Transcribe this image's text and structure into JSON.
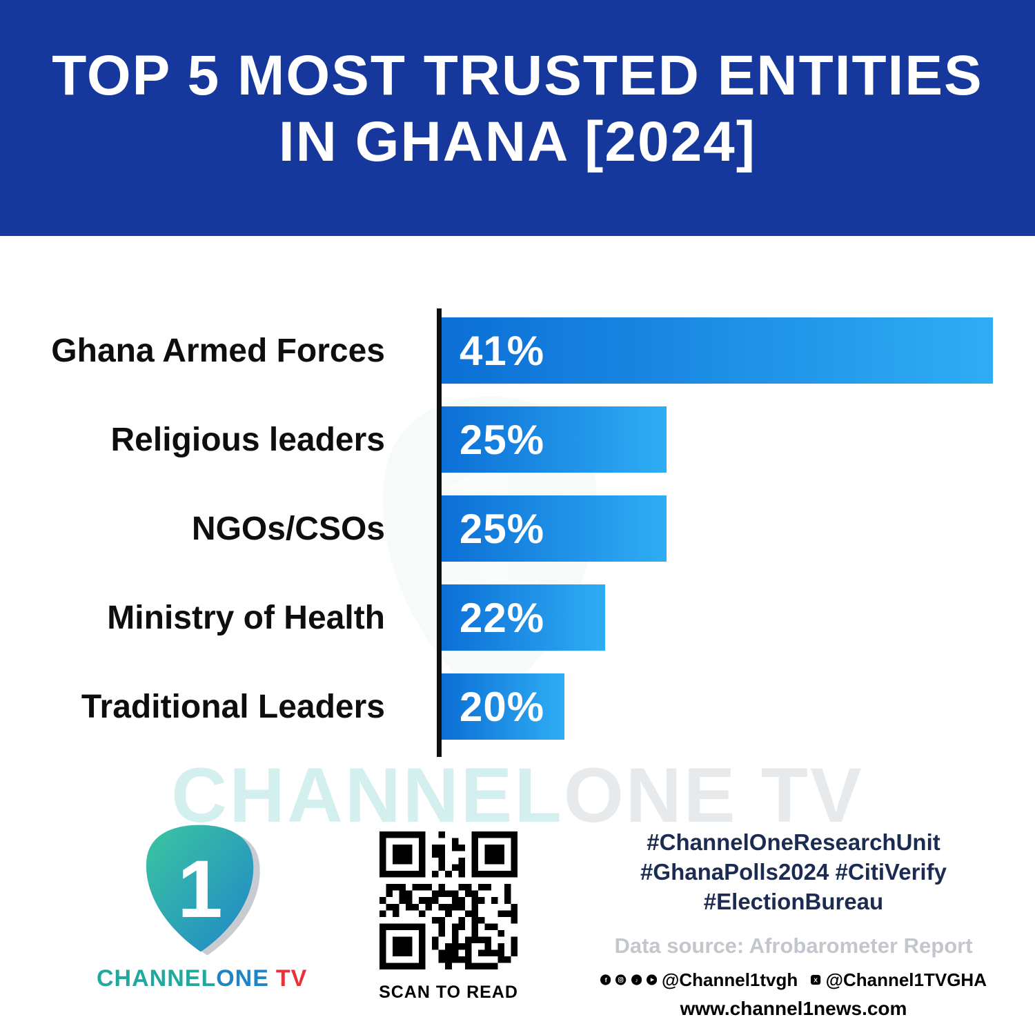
{
  "header": {
    "title_line1": "TOP 5 MOST TRUSTED ENTITIES",
    "title_line2": "IN GHANA [2024]"
  },
  "chart_data": {
    "type": "bar",
    "orientation": "horizontal",
    "title": "TOP 5 MOST TRUSTED ENTITIES IN GHANA [2024]",
    "categories": [
      "Ghana Armed Forces",
      "Religious leaders",
      "NGOs/CSOs",
      "Ministry of Health",
      "Traditional Leaders"
    ],
    "values": [
      41,
      25,
      25,
      22,
      20
    ],
    "value_labels": [
      "41%",
      "25%",
      "25%",
      "22%",
      "20%"
    ],
    "unit": "%",
    "xlim": [
      14,
      41
    ],
    "grid": false,
    "legend": false,
    "bar_gradient": [
      "#0c6fd6",
      "#2fadf4"
    ]
  },
  "watermark": {
    "channel": "CHANNEL",
    "rest": "ONE TV"
  },
  "footer": {
    "logo": {
      "digit": "1",
      "brand_channel": "CHANNEL",
      "brand_one": "ONE",
      "brand_tv": "TV"
    },
    "qr_caption": "SCAN TO READ",
    "hashtags_line1": "#ChannelOneResearchUnit",
    "hashtags_line2": "#GhanaPolls2024 #CitiVerify",
    "hashtags_line3": "#ElectionBureau",
    "data_source": "Data source: Afrobarometer Report",
    "social_handle1": "@Channel1tvgh",
    "social_handle2": "@Channel1TVGHA",
    "website": "www.channel1news.com"
  },
  "colors": {
    "header_bg": "#16389c",
    "hashtag_text": "#1b2b52",
    "source_text": "#c3c7cd",
    "brand_teal": "#23a89d",
    "brand_red": "#e6323a"
  }
}
